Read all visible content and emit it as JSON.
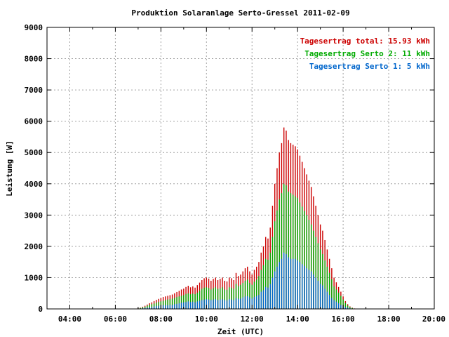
{
  "chart_data": {
    "type": "bar",
    "title": "Produktion Solaranlage Serto-Gressel 2011-02-09",
    "xlabel": "Zeit (UTC)",
    "ylabel": "Leistung [W]",
    "xlim": [
      3.0,
      20.0
    ],
    "ylim": [
      0,
      9000
    ],
    "x_ticks": [
      {
        "v": 4,
        "label": "04:00"
      },
      {
        "v": 6,
        "label": "06:00"
      },
      {
        "v": 8,
        "label": "08:00"
      },
      {
        "v": 10,
        "label": "10:00"
      },
      {
        "v": 12,
        "label": "12:00"
      },
      {
        "v": 14,
        "label": "14:00"
      },
      {
        "v": 16,
        "label": "16:00"
      },
      {
        "v": 18,
        "label": "18:00"
      },
      {
        "v": 20,
        "label": "20:00"
      }
    ],
    "y_ticks": [
      {
        "v": 0,
        "label": "0"
      },
      {
        "v": 1000,
        "label": "1000"
      },
      {
        "v": 2000,
        "label": "2000"
      },
      {
        "v": 3000,
        "label": "3000"
      },
      {
        "v": 4000,
        "label": "4000"
      },
      {
        "v": 5000,
        "label": "5000"
      },
      {
        "v": 6000,
        "label": "6000"
      },
      {
        "v": 7000,
        "label": "7000"
      },
      {
        "v": 8000,
        "label": "8000"
      },
      {
        "v": 9000,
        "label": "9000"
      }
    ],
    "grid": true,
    "legend_position": "top-right",
    "series": [
      {
        "name": "Tagesertrag total: 15.93 kWh",
        "color": "#cc0000"
      },
      {
        "name": "Tagesertrag Serto 2: 11 kWh",
        "color": "#00aa00"
      },
      {
        "name": "Tagesertrag Serto 1: 5 kWh",
        "color": "#0066cc"
      }
    ],
    "x": [
      7.0,
      7.1,
      7.2,
      7.3,
      7.4,
      7.5,
      7.6,
      7.7,
      7.8,
      7.9,
      8.0,
      8.1,
      8.2,
      8.3,
      8.4,
      8.5,
      8.6,
      8.7,
      8.8,
      8.9,
      9.0,
      9.1,
      9.2,
      9.3,
      9.4,
      9.5,
      9.6,
      9.7,
      9.8,
      9.9,
      10.0,
      10.1,
      10.2,
      10.3,
      10.4,
      10.5,
      10.6,
      10.7,
      10.8,
      10.9,
      11.0,
      11.1,
      11.2,
      11.3,
      11.4,
      11.5,
      11.6,
      11.7,
      11.8,
      11.9,
      12.0,
      12.1,
      12.2,
      12.3,
      12.4,
      12.5,
      12.6,
      12.7,
      12.8,
      12.9,
      13.0,
      13.1,
      13.2,
      13.3,
      13.4,
      13.5,
      13.6,
      13.7,
      13.8,
      13.9,
      14.0,
      14.1,
      14.2,
      14.3,
      14.4,
      14.5,
      14.6,
      14.7,
      14.8,
      14.9,
      15.0,
      15.1,
      15.2,
      15.3,
      15.4,
      15.5,
      15.6,
      15.7,
      15.8,
      15.9,
      16.0,
      16.1,
      16.2,
      16.3,
      16.4,
      16.5
    ],
    "total": [
      20,
      40,
      70,
      100,
      140,
      180,
      210,
      250,
      290,
      320,
      350,
      380,
      400,
      420,
      440,
      460,
      500,
      540,
      580,
      620,
      650,
      700,
      740,
      690,
      720,
      680,
      760,
      840,
      920,
      980,
      1000,
      970,
      900,
      960,
      1000,
      920,
      960,
      1000,
      900,
      880,
      1000,
      980,
      920,
      1150,
      1050,
      1100,
      1200,
      1300,
      1350,
      1200,
      1100,
      1250,
      1350,
      1500,
      1800,
      2000,
      2300,
      2250,
      2600,
      3300,
      4000,
      4500,
      5000,
      5300,
      5800,
      5700,
      5400,
      5300,
      5250,
      5200,
      5100,
      4900,
      4700,
      4500,
      4300,
      4100,
      3900,
      3600,
      3300,
      3000,
      2700,
      2500,
      2200,
      1900,
      1600,
      1300,
      1000,
      850,
      700,
      550,
      400,
      250,
      150,
      80,
      40,
      15
    ],
    "serto2": [
      15,
      30,
      50,
      70,
      100,
      130,
      150,
      170,
      200,
      220,
      240,
      260,
      280,
      300,
      310,
      330,
      350,
      380,
      400,
      420,
      440,
      480,
      500,
      470,
      490,
      470,
      520,
      580,
      640,
      680,
      690,
      670,
      620,
      660,
      690,
      640,
      660,
      690,
      620,
      610,
      690,
      680,
      640,
      800,
      730,
      770,
      830,
      900,
      940,
      830,
      770,
      870,
      940,
      1050,
      1250,
      1400,
      1600,
      1570,
      1800,
      2300,
      2800,
      3150,
      3500,
      3700,
      4000,
      3950,
      3750,
      3700,
      3650,
      3600,
      3550,
      3400,
      3270,
      3130,
      3000,
      2850,
      2700,
      2500,
      2300,
      2100,
      1900,
      1750,
      1550,
      1350,
      1150,
      950,
      720,
      620,
      520,
      420,
      300,
      190,
      110,
      60,
      30,
      10
    ],
    "serto1": [
      5,
      10,
      20,
      30,
      40,
      50,
      60,
      80,
      90,
      100,
      110,
      120,
      120,
      120,
      130,
      130,
      150,
      160,
      180,
      200,
      210,
      220,
      240,
      220,
      230,
      210,
      240,
      260,
      280,
      300,
      310,
      300,
      280,
      300,
      310,
      280,
      300,
      310,
      280,
      270,
      310,
      300,
      280,
      350,
      320,
      330,
      370,
      400,
      410,
      370,
      330,
      380,
      410,
      450,
      550,
      600,
      700,
      680,
      800,
      1000,
      1200,
      1350,
      1500,
      1600,
      1800,
      1750,
      1650,
      1600,
      1600,
      1600,
      1550,
      1500,
      1430,
      1370,
      1300,
      1250,
      1200,
      1100,
      1000,
      900,
      800,
      750,
      650,
      550,
      450,
      350,
      280,
      230,
      180,
      130,
      100,
      60,
      40,
      20,
      10,
      5
    ]
  }
}
